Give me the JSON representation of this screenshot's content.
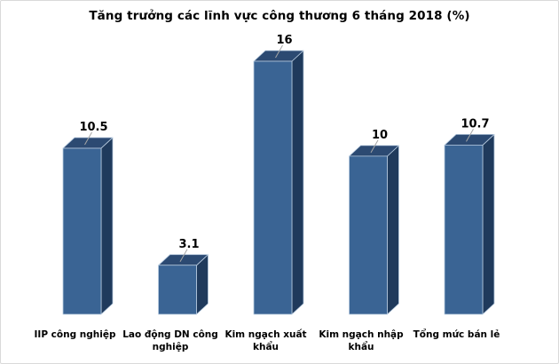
{
  "window": {
    "background": "#FFFFFF",
    "border_color": "#D9D9D9"
  },
  "chart_data": {
    "type": "bar",
    "variant": "3d-column",
    "title": "Tăng trưởng các lĩnh vực công thương 6 tháng 2018 (%)",
    "categories": [
      "IIP công nghiệp",
      "Lao động DN công nghiệp",
      "Kim ngạch xuất khẩu",
      "Kim ngạch nhập khẩu",
      "Tổng mức bán lẻ"
    ],
    "category_display_lines": [
      [
        "IIP công nghiệp"
      ],
      [
        "Lao động DN công",
        "nghiệp"
      ],
      [
        "Kim ngạch xuất",
        "khẩu"
      ],
      [
        "Kim ngạch nhập",
        "khẩu"
      ],
      [
        "Tổng mức bán lẻ"
      ]
    ],
    "values": [
      10.5,
      3.1,
      16,
      10,
      10.7
    ],
    "data_labels": [
      "10.5",
      "3.1",
      "16",
      "10",
      "10.7"
    ],
    "ylim": [
      0,
      16
    ],
    "grid": false,
    "legend": false,
    "axis_lines": false,
    "colors": {
      "bar_front": "#3A6494",
      "bar_top": "#2C4A72",
      "bar_side": "#1F3A5C",
      "bar_edge": "#B9CCE0",
      "leader_line": "#A6A6A6",
      "text": "#000000",
      "title_text": "#000000"
    }
  }
}
